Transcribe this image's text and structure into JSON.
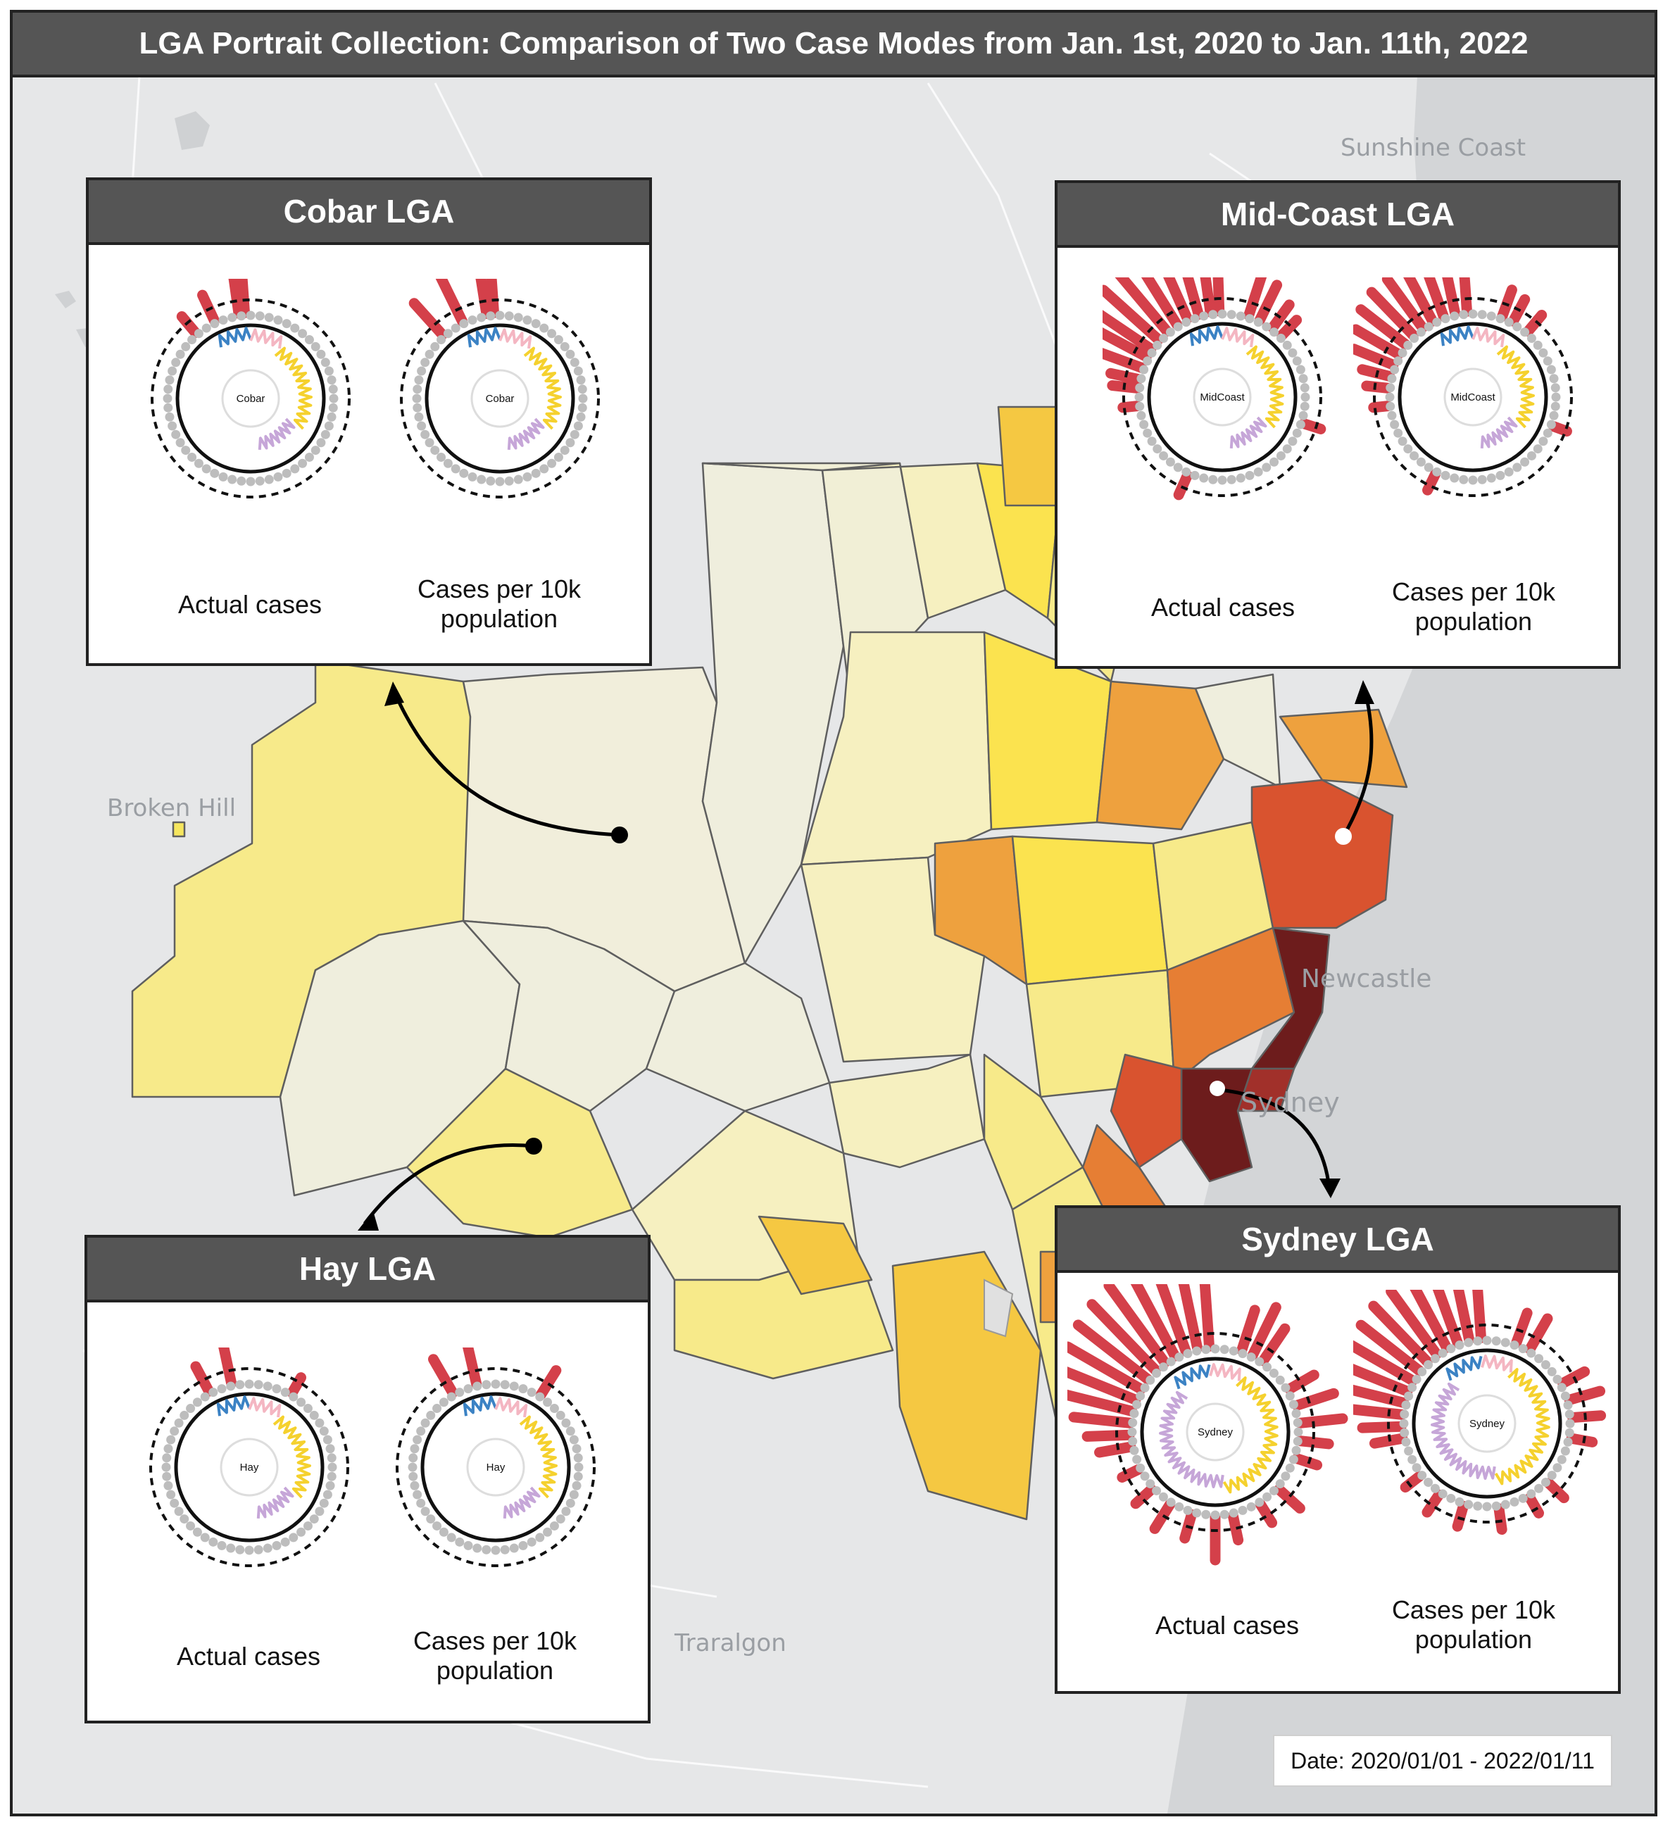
{
  "title": "LGA Portrait Collection: Comparison of Two Case Modes from Jan. 1st, 2020 to Jan. 11th, 2022",
  "date_label": "Date: 2020/01/01 - 2022/01/11",
  "map_labels": {
    "sunshine_coast": "Sunshine Coast",
    "broken_hill": "Broken Hill",
    "newcastle": "Newcastle",
    "sydney": "Sydney",
    "traralgon": "Traralgon"
  },
  "colors": {
    "panel_header": "#555555",
    "bar_red": "#d4404a",
    "choropleth_scale": [
      "#efeedd",
      "#f6f0c0",
      "#f7ea8a",
      "#fbe34f",
      "#f5c842",
      "#eea13e",
      "#e67e34",
      "#d9532f",
      "#a1302a",
      "#6d1c1c"
    ],
    "inner_ring_blue": "#3b82c4",
    "inner_ring_pink": "#f4b6c2",
    "inner_ring_yellow": "#f5d12e",
    "inner_ring_purple": "#c6a6d8"
  },
  "panels": {
    "cobar": {
      "title": "Cobar LGA",
      "center_label": "Cobar",
      "actual_caption": "Actual cases",
      "per10k_caption": "Cases per 10k population"
    },
    "midcoast": {
      "title": "Mid-Coast LGA",
      "center_label": "MidCoast",
      "actual_caption": "Actual cases",
      "per10k_caption": "Cases per 10k population"
    },
    "hay": {
      "title": "Hay LGA",
      "center_label": "Hay",
      "actual_caption": "Actual cases",
      "per10k_caption": "Cases per 10k population"
    },
    "sydney": {
      "title": "Sydney LGA",
      "center_label": "Sydney",
      "actual_caption": "Actual cases",
      "per10k_caption": "Cases per 10k population"
    }
  },
  "icons": [
    "location-dot",
    "arrow-icon"
  ]
}
